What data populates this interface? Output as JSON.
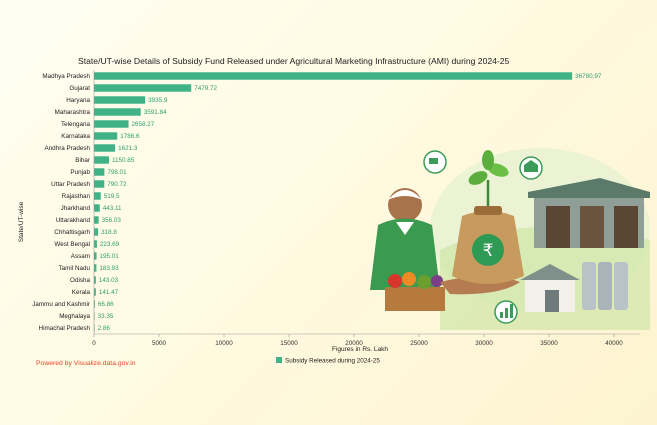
{
  "footer": "Powered by Visualize.data.gov.in",
  "colors": {
    "bar": "#3fb386",
    "value_label": "#2e9e6e",
    "footer": "#e8452c"
  },
  "illustration": "farmer-with-subsidy-money-bag-and-market-infrastructure",
  "chart_data": {
    "type": "bar",
    "orientation": "horizontal",
    "title": "State/UT-wise Details of Subsidy Fund Released under Agricultural Marketing Infrastructure (AMI) during 2024-25",
    "xlabel": "Figures in Rs. Lakh",
    "ylabel": "State/UT-wise",
    "xlim": [
      0,
      42000
    ],
    "xticks": [
      0,
      5000,
      10000,
      15000,
      20000,
      25000,
      30000,
      35000,
      40000
    ],
    "grid": false,
    "legend_position": "bottom",
    "categories": [
      "Madhya Pradesh",
      "Gujarat",
      "Haryana",
      "Maharashtra",
      "Telengana",
      "Karnataka",
      "Andhra Pradesh",
      "Bihar",
      "Punjab",
      "Uttar Pradesh",
      "Rajasthan",
      "Jharkhand",
      "Uttarakhand",
      "Chhattisgarh",
      "West Bengal",
      "Assam",
      "Tamil Nadu",
      "Odisha",
      "Kerala",
      "Jammu and Kashmir",
      "Meghalaya",
      "Himachal Pradesh"
    ],
    "series": [
      {
        "name": "Subsidy Released during 2024-25",
        "values": [
          36780.97,
          7479.72,
          3935.9,
          3591.84,
          2658.27,
          1786.6,
          1621.3,
          1150.85,
          798.01,
          790.72,
          519.5,
          443.11,
          356.03,
          318.8,
          223.69,
          195.01,
          183.93,
          143.03,
          141.47,
          66.86,
          33.35,
          2.86
        ],
        "labels": [
          "36780.97",
          "7479.72",
          "3935.9",
          "3591.84",
          "2658.27",
          "1786.6",
          "1621.3",
          "1150.85",
          "798.01",
          "790.72",
          "519.5",
          "443.11",
          "356.03",
          "318.8",
          "223.69",
          "195.01",
          "183.93",
          "143.03",
          "141.47",
          "66.86",
          "33.35",
          "2.86"
        ]
      }
    ]
  }
}
